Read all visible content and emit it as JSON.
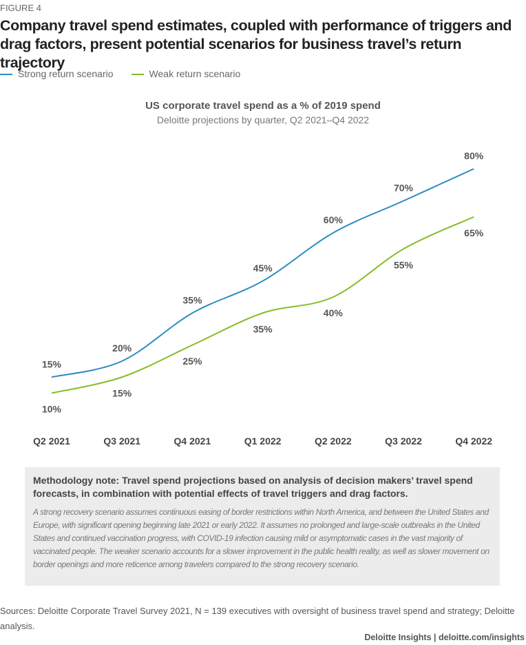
{
  "figure_label": "FIGURE 4",
  "title": "Company travel spend estimates, coupled with performance of triggers and drag factors, present potential scenarios for business travel’s return trajectory",
  "chart_data": {
    "type": "line",
    "title": "US corporate travel spend as a % of 2019 spend",
    "subtitle": "Deloitte projections by quarter, Q2 2021–Q4 2022",
    "categories": [
      "Q2 2021",
      "Q3 2021",
      "Q4 2021",
      "Q1 2022",
      "Q2 2022",
      "Q3 2022",
      "Q4 2022"
    ],
    "series": [
      {
        "name": "Strong return scenario",
        "color": "#2b8cbe",
        "values": [
          15,
          20,
          35,
          45,
          60,
          70,
          80
        ],
        "labels": [
          "15%",
          "20%",
          "35%",
          "45%",
          "60%",
          "70%",
          "80%"
        ]
      },
      {
        "name": "Weak return scenario",
        "color": "#86bc25",
        "values": [
          10,
          15,
          25,
          35,
          40,
          55,
          65
        ],
        "labels": [
          "10%",
          "15%",
          "25%",
          "35%",
          "40%",
          "55%",
          "65%"
        ]
      }
    ],
    "legend_position": "top-left",
    "grid": false,
    "unit": "%"
  },
  "note": {
    "heading": "Methodology note: Travel spend projections based on analysis of decision makers’ travel spend forecasts, in combination with potential effects of travel triggers and drag factors.",
    "body": "A strong recovery scenario assumes continuous easing of border restrictions within North America, and between the United States and Europe, with significant opening beginning late 2021 or early 2022. It assumes no prolonged and large-scale outbreaks in the United States and continued vaccination progress, with COVID-19 infection causing mild or asymptomatic cases in the vast majority of vaccinated people. The weaker scenario accounts for a slower improvement in the public health reality, as well as slower movement on border openings and more reticence among travelers compared to the strong recovery scenario."
  },
  "sources": "Sources: Deloitte Corporate Travel Survey 2021, N = 139 executives with oversight of business travel spend and strategy; Deloitte analysis.",
  "credit": "Deloitte Insights | deloitte.com/insights"
}
